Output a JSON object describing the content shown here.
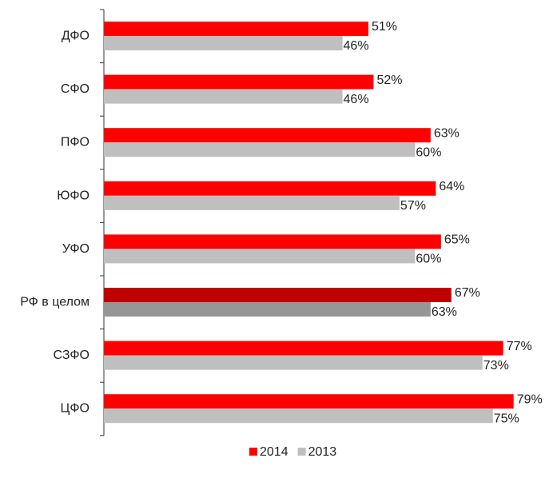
{
  "chart_data": {
    "type": "hbar",
    "categories": [
      "ДФО",
      "СФО",
      "ПФО",
      "ЮФО",
      "УФО",
      "РФ в целом",
      "СЗФО",
      "ЦФО"
    ],
    "series": [
      {
        "name": "2014",
        "color": "#ff0000",
        "colors": [
          "#ff0000",
          "#ff0000",
          "#ff0000",
          "#ff0000",
          "#ff0000",
          "#c00000",
          "#ff0000",
          "#ff0000"
        ],
        "values": [
          51,
          52,
          63,
          64,
          65,
          67,
          77,
          79
        ],
        "value_labels": [
          "51%",
          "52%",
          "63%",
          "64%",
          "65%",
          "67%",
          "77%",
          "79%"
        ]
      },
      {
        "name": "2013",
        "color": "#bfbfbf",
        "colors": [
          "#bfbfbf",
          "#bfbfbf",
          "#bfbfbf",
          "#bfbfbf",
          "#bfbfbf",
          "#969696",
          "#bfbfbf",
          "#bfbfbf"
        ],
        "values": [
          46,
          46,
          60,
          57,
          60,
          63,
          73,
          75
        ],
        "value_labels": [
          "46%",
          "46%",
          "60%",
          "57%",
          "60%",
          "63%",
          "73%",
          "75%"
        ]
      }
    ],
    "legend": "bottom"
  }
}
